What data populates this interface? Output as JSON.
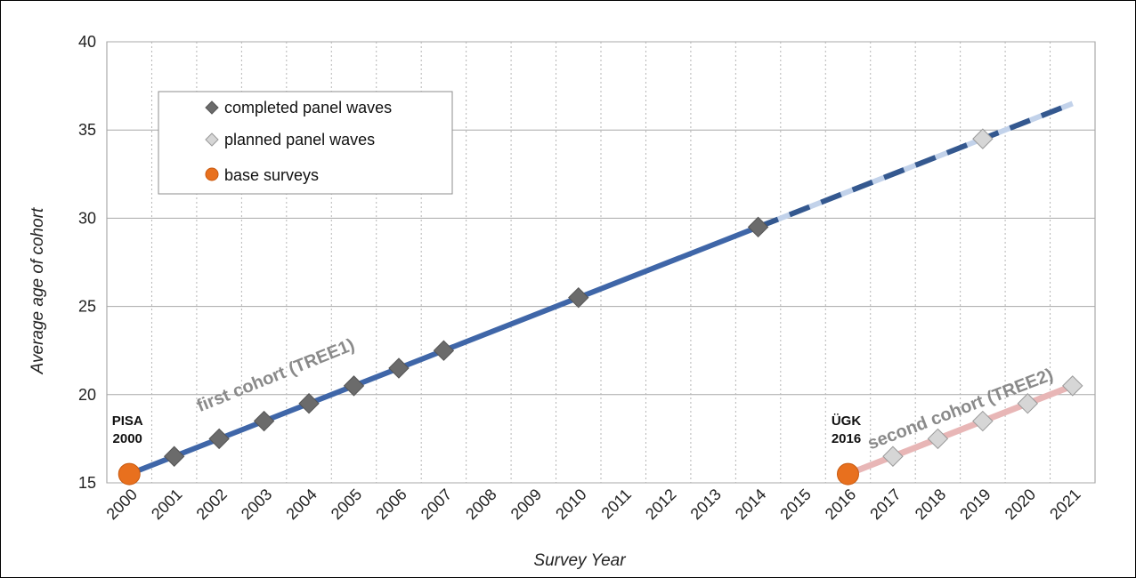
{
  "chart_data": {
    "type": "line",
    "xlabel": "Survey Year",
    "ylabel": "Average age of cohort",
    "ylim": [
      15,
      40
    ],
    "yticks": [
      15,
      20,
      25,
      30,
      35,
      40
    ],
    "x_categories": [
      "2000",
      "2001",
      "2002",
      "2003",
      "2004",
      "2005",
      "2006",
      "2007",
      "2008",
      "2009",
      "2010",
      "2011",
      "2012",
      "2013",
      "2014",
      "2015",
      "2016",
      "2017",
      "2018",
      "2019",
      "2020",
      "2021"
    ],
    "grid": true,
    "legend_position": "top-left",
    "legend": [
      {
        "label": "completed panel waves",
        "marker": "diamond",
        "color": "#6b6b6b"
      },
      {
        "label": "planned panel waves",
        "marker": "diamond",
        "color": "#d6d6d6"
      },
      {
        "label": "base surveys",
        "marker": "circle",
        "color": "#e8701e"
      }
    ],
    "series": [
      {
        "name": "first cohort (TREE1)",
        "color": "#3f66a8",
        "line": [
          [
            2000,
            15.5
          ],
          [
            2014,
            29.5
          ]
        ],
        "dashed_line": [
          [
            2014,
            29.5
          ],
          [
            2021,
            36.5
          ]
        ],
        "base": [
          [
            2000,
            15.5
          ]
        ],
        "completed": [
          [
            2001,
            16.5
          ],
          [
            2002,
            17.5
          ],
          [
            2003,
            18.5
          ],
          [
            2004,
            19.5
          ],
          [
            2005,
            20.5
          ],
          [
            2006,
            21.5
          ],
          [
            2007,
            22.5
          ],
          [
            2010,
            25.5
          ],
          [
            2014,
            29.5
          ]
        ],
        "planned": [
          [
            2019,
            34.5
          ]
        ]
      },
      {
        "name": "second cohort (TREE2)",
        "color": "#e8b6b6",
        "line": [
          [
            2016,
            15.5
          ],
          [
            2021,
            20.5
          ]
        ],
        "base": [
          [
            2016,
            15.5
          ]
        ],
        "completed": [],
        "planned": [
          [
            2017,
            16.5
          ],
          [
            2018,
            17.5
          ],
          [
            2019,
            18.5
          ],
          [
            2020,
            19.5
          ],
          [
            2021,
            20.5
          ]
        ]
      }
    ],
    "annotations": [
      {
        "lines": [
          "PISA",
          "2000"
        ],
        "x": 2000,
        "y": 15.5
      },
      {
        "lines": [
          "ÜGK",
          "2016"
        ],
        "x": 2016,
        "y": 15.5
      }
    ]
  }
}
